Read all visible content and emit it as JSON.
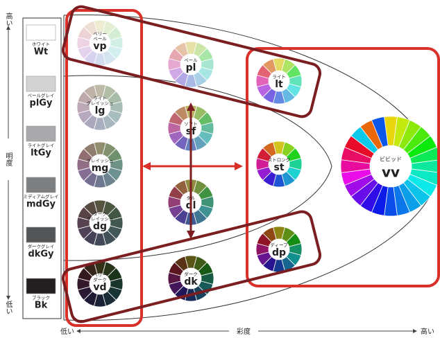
{
  "axes": {
    "vertical": {
      "high": "高い",
      "name": "明度",
      "low": "低い"
    },
    "horizontal": {
      "low": "低い",
      "name": "彩度",
      "high": "高い"
    }
  },
  "grays": [
    {
      "name": "ホワイト",
      "abbr": "Wt",
      "color": "#ffffff"
    },
    {
      "name": "ペールグレイ",
      "abbr": "plGy",
      "color": "#d3d3d4"
    },
    {
      "name": "ライトグレイ",
      "abbr": "ltGy",
      "color": "#a9a9ab"
    },
    {
      "name": "ミディアムグレイ",
      "abbr": "mdGy",
      "color": "#7e7f81"
    },
    {
      "name": "ダークグレイ",
      "abbr": "dkGy",
      "color": "#545557"
    },
    {
      "name": "ブラック",
      "abbr": "Bk",
      "color": "#231f20"
    }
  ],
  "tones": [
    {
      "name": [
        "ベリー",
        "ペール"
      ],
      "abbr": "vp"
    },
    {
      "name": [
        "ペール"
      ],
      "abbr": "pl"
    },
    {
      "name": [
        "ライト"
      ],
      "abbr": "lt"
    },
    {
      "name": [
        "ライト",
        "グレイッシュ"
      ],
      "abbr": "lg"
    },
    {
      "name": [
        "ソフト"
      ],
      "abbr": "sf"
    },
    {
      "name": [
        "ストロング"
      ],
      "abbr": "st"
    },
    {
      "name": [
        "ビビッド"
      ],
      "abbr": "vv"
    },
    {
      "name": [
        "グレイッシュ"
      ],
      "abbr": "mg"
    },
    {
      "name": [
        "ダル"
      ],
      "abbr": "dl"
    },
    {
      "name": [
        "ダーク",
        "グレイッシュ"
      ],
      "abbr": "dg"
    },
    {
      "name": [
        "ディープ"
      ],
      "abbr": "dp"
    },
    {
      "name": [
        "ベリー",
        "ダーク"
      ],
      "abbr": "vd"
    },
    {
      "name": [
        "ダーク"
      ],
      "abbr": "dk"
    }
  ]
}
